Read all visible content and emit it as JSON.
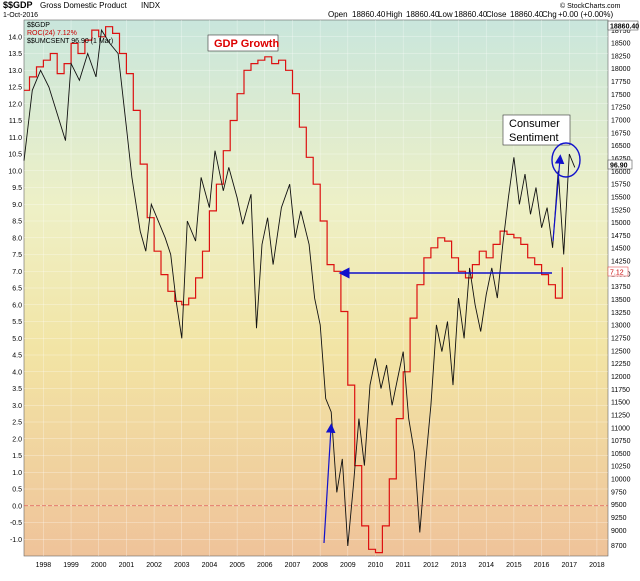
{
  "header": {
    "symbol": "$$GDP",
    "name": "Gross Domestic Product",
    "exchange": "INDX",
    "date": "1-Oct-2016",
    "brand": "© StockCharts.com",
    "quote": {
      "open_label": "Open",
      "open": "18860.40",
      "high_label": "High",
      "high": "18860.40",
      "low_label": "Low",
      "low": "18860.40",
      "close_label": "Close",
      "close": "18860.40",
      "chg_label": "Chg",
      "chg": "+0.00 (+0.00%)"
    }
  },
  "legend": [
    {
      "text": "$$GDP",
      "color": "#000000"
    },
    {
      "text": "ROC(24) 7.12%",
      "color": "#cc0000"
    },
    {
      "text": "$$UMCSENT 96.90 (1 Mar)",
      "color": "#000000"
    }
  ],
  "annotations": {
    "gdp_growth": "GDP Growth",
    "consumer_line1": "Consumer",
    "consumer_line2": "Sentiment",
    "right_top_value": "18860.40",
    "right_umcsent_value": "96.90",
    "right_roc_value": "7.12"
  },
  "colors": {
    "gdp_roc": "#dd1111",
    "umcsent": "#111111",
    "arrow": "#1111cc",
    "zero_line": "#e06060"
  },
  "chart_data": {
    "type": "line",
    "x_ticks": [
      "1998",
      "1999",
      "2000",
      "2001",
      "2002",
      "2003",
      "2004",
      "2005",
      "2006",
      "2007",
      "2008",
      "2009",
      "2010",
      "2011",
      "2012",
      "2013",
      "2014",
      "2015",
      "2016",
      "2017",
      "2018"
    ],
    "xlim": [
      1997.3,
      2018.4
    ],
    "left_axis": {
      "ylim": [
        -1.5,
        14.5
      ],
      "ticks": [
        "-1.0",
        "-0.5",
        "0.0",
        "0.5",
        "1.0",
        "1.5",
        "2.0",
        "2.5",
        "3.0",
        "3.5",
        "4.0",
        "4.5",
        "5.0",
        "5.5",
        "6.0",
        "6.5",
        "7.0",
        "7.5",
        "8.0",
        "8.5",
        "9.0",
        "9.5",
        "10.0",
        "10.5",
        "11.0",
        "11.5",
        "12.0",
        "12.5",
        "13.0",
        "13.5",
        "14.0"
      ]
    },
    "right_axis": {
      "ylim": [
        8500,
        18950
      ],
      "ticks": [
        "8700",
        "9000",
        "9250",
        "9500",
        "9750",
        "10000",
        "10250",
        "10500",
        "10750",
        "11000",
        "11250",
        "11500",
        "11750",
        "12000",
        "12250",
        "12500",
        "12750",
        "13000",
        "13250",
        "13500",
        "13750",
        "14000",
        "14250",
        "14500",
        "14750",
        "15000",
        "15250",
        "15500",
        "15750",
        "16000",
        "16250",
        "16500",
        "16750",
        "17000",
        "17250",
        "17500",
        "17750",
        "18000",
        "18250",
        "18500",
        "18750"
      ]
    },
    "series": [
      {
        "name": "ROC(24) 7.12%",
        "axis": "left",
        "points": [
          [
            1997.3,
            12.4
          ],
          [
            1997.5,
            12.8
          ],
          [
            1997.75,
            13.1
          ],
          [
            1998.0,
            13.3
          ],
          [
            1998.25,
            13.5
          ],
          [
            1998.5,
            12.9
          ],
          [
            1998.75,
            13.2
          ],
          [
            1999.0,
            13.8
          ],
          [
            1999.25,
            13.5
          ],
          [
            1999.5,
            13.9
          ],
          [
            1999.75,
            14.2
          ],
          [
            2000.0,
            14.0
          ],
          [
            2000.25,
            14.3
          ],
          [
            2000.5,
            14.1
          ],
          [
            2000.75,
            13.5
          ],
          [
            2001.0,
            12.9
          ],
          [
            2001.25,
            11.8
          ],
          [
            2001.5,
            10.2
          ],
          [
            2001.75,
            8.6
          ],
          [
            2002.0,
            7.6
          ],
          [
            2002.25,
            6.9
          ],
          [
            2002.5,
            6.4
          ],
          [
            2002.75,
            6.1
          ],
          [
            2003.0,
            6.0
          ],
          [
            2003.25,
            6.2
          ],
          [
            2003.5,
            6.8
          ],
          [
            2003.75,
            7.6
          ],
          [
            2004.0,
            8.8
          ],
          [
            2004.25,
            9.6
          ],
          [
            2004.5,
            10.6
          ],
          [
            2004.75,
            11.5
          ],
          [
            2005.0,
            12.3
          ],
          [
            2005.25,
            13.0
          ],
          [
            2005.5,
            13.2
          ],
          [
            2005.75,
            13.3
          ],
          [
            2006.0,
            13.4
          ],
          [
            2006.25,
            13.2
          ],
          [
            2006.5,
            13.3
          ],
          [
            2006.75,
            13.0
          ],
          [
            2007.0,
            12.3
          ],
          [
            2007.25,
            11.3
          ],
          [
            2007.5,
            10.4
          ],
          [
            2007.75,
            9.6
          ],
          [
            2008.0,
            8.5
          ],
          [
            2008.25,
            7.2
          ],
          [
            2008.5,
            7.0
          ],
          [
            2008.75,
            5.8
          ],
          [
            2009.0,
            3.6
          ],
          [
            2009.25,
            1.2
          ],
          [
            2009.5,
            -0.6
          ],
          [
            2009.75,
            -1.3
          ],
          [
            2010.0,
            -1.4
          ],
          [
            2010.25,
            -0.6
          ],
          [
            2010.5,
            0.8
          ],
          [
            2010.75,
            2.6
          ],
          [
            2011.0,
            4.0
          ],
          [
            2011.25,
            5.6
          ],
          [
            2011.5,
            6.6
          ],
          [
            2011.75,
            7.4
          ],
          [
            2012.0,
            7.7
          ],
          [
            2012.25,
            8.0
          ],
          [
            2012.5,
            7.9
          ],
          [
            2012.75,
            7.4
          ],
          [
            2013.0,
            7.0
          ],
          [
            2013.25,
            6.8
          ],
          [
            2013.5,
            7.2
          ],
          [
            2013.75,
            7.6
          ],
          [
            2014.0,
            7.4
          ],
          [
            2014.25,
            7.8
          ],
          [
            2014.5,
            8.2
          ],
          [
            2014.75,
            8.1
          ],
          [
            2015.0,
            8.0
          ],
          [
            2015.25,
            7.8
          ],
          [
            2015.5,
            7.4
          ],
          [
            2015.75,
            7.2
          ],
          [
            2016.0,
            6.9
          ],
          [
            2016.25,
            6.6
          ],
          [
            2016.5,
            6.2
          ],
          [
            2016.75,
            7.12
          ]
        ]
      },
      {
        "name": "$$UMCSENT 96.90 (1 Mar)",
        "axis": "left",
        "points": [
          [
            1997.3,
            10.3
          ],
          [
            1997.6,
            12.4
          ],
          [
            1997.9,
            13.0
          ],
          [
            1998.2,
            12.5
          ],
          [
            1998.5,
            11.7
          ],
          [
            1998.8,
            10.9
          ],
          [
            1999.0,
            13.2
          ],
          [
            1999.3,
            12.7
          ],
          [
            1999.6,
            13.5
          ],
          [
            1999.9,
            12.8
          ],
          [
            2000.1,
            14.2
          ],
          [
            2000.4,
            13.8
          ],
          [
            2000.7,
            13.5
          ],
          [
            2001.0,
            11.3
          ],
          [
            2001.2,
            9.8
          ],
          [
            2001.5,
            8.2
          ],
          [
            2001.7,
            7.6
          ],
          [
            2001.9,
            9.0
          ],
          [
            2002.1,
            8.6
          ],
          [
            2002.4,
            8.0
          ],
          [
            2002.6,
            7.5
          ],
          [
            2002.8,
            6.1
          ],
          [
            2003.0,
            5.0
          ],
          [
            2003.2,
            8.5
          ],
          [
            2003.5,
            7.9
          ],
          [
            2003.7,
            9.8
          ],
          [
            2004.0,
            8.9
          ],
          [
            2004.2,
            10.6
          ],
          [
            2004.5,
            9.4
          ],
          [
            2004.7,
            10.1
          ],
          [
            2005.0,
            9.2
          ],
          [
            2005.2,
            8.4
          ],
          [
            2005.5,
            9.3
          ],
          [
            2005.7,
            5.3
          ],
          [
            2005.9,
            7.8
          ],
          [
            2006.1,
            8.6
          ],
          [
            2006.3,
            7.2
          ],
          [
            2006.6,
            8.9
          ],
          [
            2006.9,
            9.6
          ],
          [
            2007.1,
            8.0
          ],
          [
            2007.3,
            8.8
          ],
          [
            2007.6,
            7.8
          ],
          [
            2007.8,
            6.2
          ],
          [
            2008.0,
            5.4
          ],
          [
            2008.2,
            3.2
          ],
          [
            2008.4,
            2.8
          ],
          [
            2008.6,
            0.4
          ],
          [
            2008.8,
            1.4
          ],
          [
            2009.0,
            -1.2
          ],
          [
            2009.2,
            0.6
          ],
          [
            2009.4,
            2.6
          ],
          [
            2009.6,
            1.2
          ],
          [
            2009.8,
            3.6
          ],
          [
            2010.0,
            4.4
          ],
          [
            2010.2,
            3.5
          ],
          [
            2010.4,
            4.2
          ],
          [
            2010.6,
            3.0
          ],
          [
            2010.8,
            3.8
          ],
          [
            2011.0,
            4.6
          ],
          [
            2011.2,
            2.6
          ],
          [
            2011.4,
            1.6
          ],
          [
            2011.6,
            -0.8
          ],
          [
            2011.8,
            1.2
          ],
          [
            2012.0,
            3.0
          ],
          [
            2012.2,
            5.4
          ],
          [
            2012.4,
            4.6
          ],
          [
            2012.6,
            5.5
          ],
          [
            2012.8,
            3.6
          ],
          [
            2013.0,
            6.2
          ],
          [
            2013.2,
            5.0
          ],
          [
            2013.4,
            7.1
          ],
          [
            2013.6,
            6.0
          ],
          [
            2013.8,
            5.2
          ],
          [
            2014.0,
            6.3
          ],
          [
            2014.2,
            7.1
          ],
          [
            2014.4,
            6.2
          ],
          [
            2014.6,
            7.8
          ],
          [
            2014.8,
            9.2
          ],
          [
            2015.0,
            10.4
          ],
          [
            2015.2,
            9.0
          ],
          [
            2015.4,
            9.9
          ],
          [
            2015.6,
            8.7
          ],
          [
            2015.8,
            9.5
          ],
          [
            2016.0,
            8.3
          ],
          [
            2016.2,
            8.9
          ],
          [
            2016.4,
            7.7
          ],
          [
            2016.6,
            10.0
          ],
          [
            2016.8,
            7.5
          ],
          [
            2017.0,
            10.5
          ],
          [
            2017.2,
            10.1
          ]
        ]
      }
    ]
  }
}
